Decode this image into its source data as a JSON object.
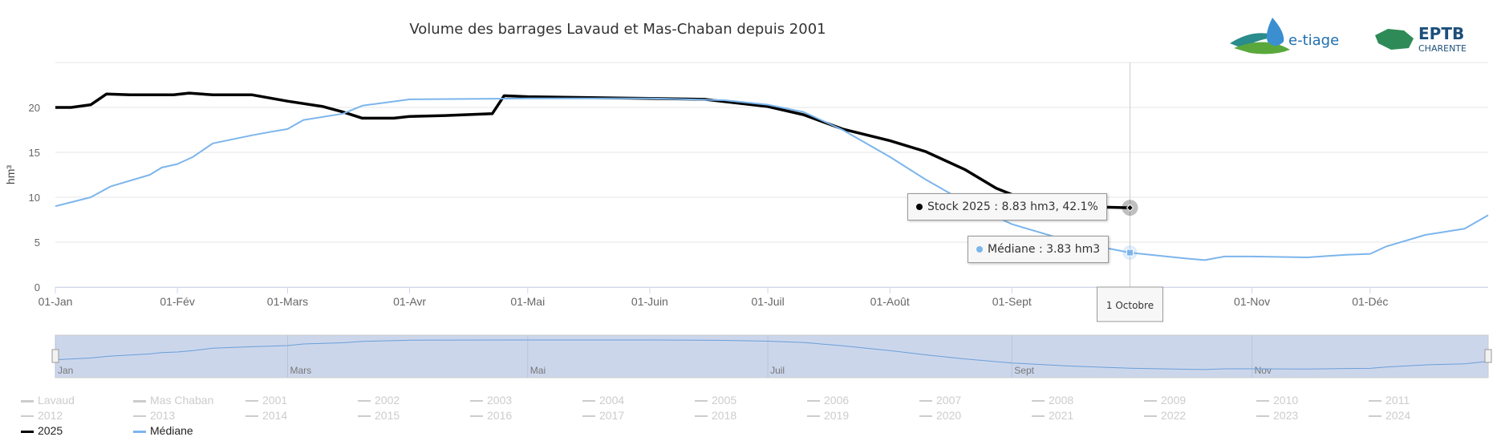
{
  "chart_data": {
    "type": "line",
    "title": "Volume des barrages Lavaud et Mas-Chaban depuis 2001",
    "ylabel": "hm³",
    "ylim": [
      0,
      25
    ],
    "yticks": [
      0,
      5,
      10,
      15,
      20
    ],
    "xlim": [
      "01-01",
      "12-31"
    ],
    "xticks": [
      {
        "date": "01-01",
        "label": "01-Jan"
      },
      {
        "date": "02-01",
        "label": "01-Fév"
      },
      {
        "date": "03-01",
        "label": "01-Mars"
      },
      {
        "date": "04-01",
        "label": "01-Avr"
      },
      {
        "date": "05-01",
        "label": "01-Mai"
      },
      {
        "date": "06-01",
        "label": "01-Juin"
      },
      {
        "date": "07-01",
        "label": "01-Juil"
      },
      {
        "date": "08-01",
        "label": "01-Août"
      },
      {
        "date": "09-01",
        "label": "01-Sept"
      },
      {
        "date": "11-01",
        "label": "01-Nov"
      },
      {
        "date": "12-01",
        "label": "01-Déc"
      }
    ],
    "grid": true,
    "legend_placement": "bottom",
    "series": [
      {
        "name": "2025",
        "color": "#000000",
        "points": [
          [
            "01-01",
            20.0
          ],
          [
            "01-05",
            20.0
          ],
          [
            "01-10",
            20.3
          ],
          [
            "01-14",
            21.5
          ],
          [
            "01-20",
            21.4
          ],
          [
            "01-31",
            21.4
          ],
          [
            "02-04",
            21.6
          ],
          [
            "02-10",
            21.4
          ],
          [
            "02-20",
            21.4
          ],
          [
            "03-01",
            20.7
          ],
          [
            "03-10",
            20.1
          ],
          [
            "03-15",
            19.5
          ],
          [
            "03-20",
            18.8
          ],
          [
            "03-28",
            18.8
          ],
          [
            "04-01",
            19.0
          ],
          [
            "04-10",
            19.1
          ],
          [
            "04-22",
            19.3
          ],
          [
            "04-25",
            21.3
          ],
          [
            "05-01",
            21.2
          ],
          [
            "06-01",
            21.0
          ],
          [
            "06-15",
            20.9
          ],
          [
            "07-01",
            20.1
          ],
          [
            "07-10",
            19.2
          ],
          [
            "07-20",
            17.6
          ],
          [
            "08-01",
            16.3
          ],
          [
            "08-10",
            15.1
          ],
          [
            "08-20",
            13.1
          ],
          [
            "08-28",
            11.0
          ],
          [
            "09-05",
            9.6
          ],
          [
            "09-15",
            9.0
          ],
          [
            "10-01",
            8.83
          ]
        ]
      },
      {
        "name": "Médiane",
        "color": "#7cb5ec",
        "points": [
          [
            "01-01",
            9.0
          ],
          [
            "01-10",
            10.0
          ],
          [
            "01-15",
            11.2
          ],
          [
            "01-25",
            12.5
          ],
          [
            "01-28",
            13.3
          ],
          [
            "02-01",
            13.7
          ],
          [
            "02-05",
            14.5
          ],
          [
            "02-10",
            16.0
          ],
          [
            "02-20",
            16.9
          ],
          [
            "02-25",
            17.3
          ],
          [
            "03-01",
            17.6
          ],
          [
            "03-05",
            18.6
          ],
          [
            "03-15",
            19.3
          ],
          [
            "03-20",
            20.2
          ],
          [
            "04-01",
            20.9
          ],
          [
            "05-01",
            21.0
          ],
          [
            "06-01",
            21.0
          ],
          [
            "06-20",
            20.8
          ],
          [
            "07-01",
            20.3
          ],
          [
            "07-10",
            19.5
          ],
          [
            "07-20",
            17.5
          ],
          [
            "08-01",
            14.5
          ],
          [
            "08-10",
            12.0
          ],
          [
            "08-20",
            9.5
          ],
          [
            "09-01",
            7.0
          ],
          [
            "09-15",
            5.2
          ],
          [
            "10-01",
            3.83
          ],
          [
            "10-15",
            3.2
          ],
          [
            "10-20",
            3.0
          ],
          [
            "10-25",
            3.4
          ],
          [
            "11-01",
            3.4
          ],
          [
            "11-15",
            3.3
          ],
          [
            "11-25",
            3.6
          ],
          [
            "12-01",
            3.7
          ],
          [
            "12-05",
            4.5
          ],
          [
            "12-15",
            5.8
          ],
          [
            "12-25",
            6.5
          ],
          [
            "12-27",
            7.0
          ],
          [
            "12-31",
            8.0
          ]
        ]
      }
    ],
    "crosshair": {
      "date": "10-01",
      "label": "1 Octobre"
    },
    "tooltips": [
      {
        "text": "Stock 2025 : 8.83 hm3, 42.1%",
        "color": "#000000"
      },
      {
        "text": "Médiane : 3.83 hm3",
        "color": "#7cb5ec"
      }
    ],
    "navigator": {
      "labels": [
        [
          "01-01",
          "Jan"
        ],
        [
          "03-01",
          "Mars"
        ],
        [
          "05-01",
          "Mai"
        ],
        [
          "07-01",
          "Juil"
        ],
        [
          "09-01",
          "Sept"
        ],
        [
          "11-01",
          "Nov"
        ]
      ]
    },
    "legend": [
      {
        "label": "Lavaud",
        "active": false,
        "thick": true
      },
      {
        "label": "Mas Chaban",
        "active": false,
        "thick": true
      },
      {
        "label": "2001"
      },
      {
        "label": "2002"
      },
      {
        "label": "2003"
      },
      {
        "label": "2004"
      },
      {
        "label": "2005"
      },
      {
        "label": "2006"
      },
      {
        "label": "2007"
      },
      {
        "label": "2008"
      },
      {
        "label": "2009"
      },
      {
        "label": "2010"
      },
      {
        "label": "2011"
      },
      {
        "label": "2012"
      },
      {
        "label": "2013"
      },
      {
        "label": "2014"
      },
      {
        "label": "2015"
      },
      {
        "label": "2016"
      },
      {
        "label": "2017"
      },
      {
        "label": "2018"
      },
      {
        "label": "2019"
      },
      {
        "label": "2020"
      },
      {
        "label": "2021"
      },
      {
        "label": "2022"
      },
      {
        "label": "2023"
      },
      {
        "label": "2024"
      },
      {
        "label": "2025",
        "active": true,
        "color": "#000000"
      },
      {
        "label": "Médiane",
        "active": true,
        "color": "#7cb5ec"
      }
    ]
  },
  "logos": {
    "etiage": "e-tiage",
    "eptb": "EPTB",
    "eptb_sub": "CHARENTE"
  }
}
